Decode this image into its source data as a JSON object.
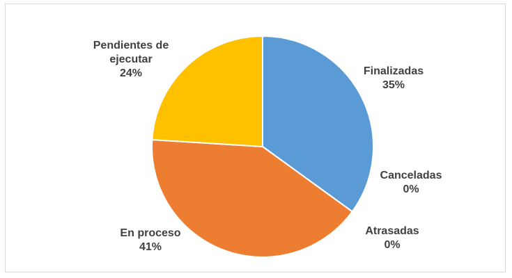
{
  "chart_data": {
    "type": "pie",
    "categories": [
      "Finalizadas",
      "Canceladas",
      "Atrasadas",
      "En proceso",
      "Pendientes de ejecutar"
    ],
    "values": [
      35,
      0,
      0,
      41,
      24
    ],
    "value_labels": [
      "35%",
      "0%",
      "0%",
      "41%",
      "24%"
    ],
    "colors": [
      "#5b9bd5",
      "#a5a5a5",
      "#4472c4",
      "#ed7d31",
      "#ffc000"
    ]
  }
}
